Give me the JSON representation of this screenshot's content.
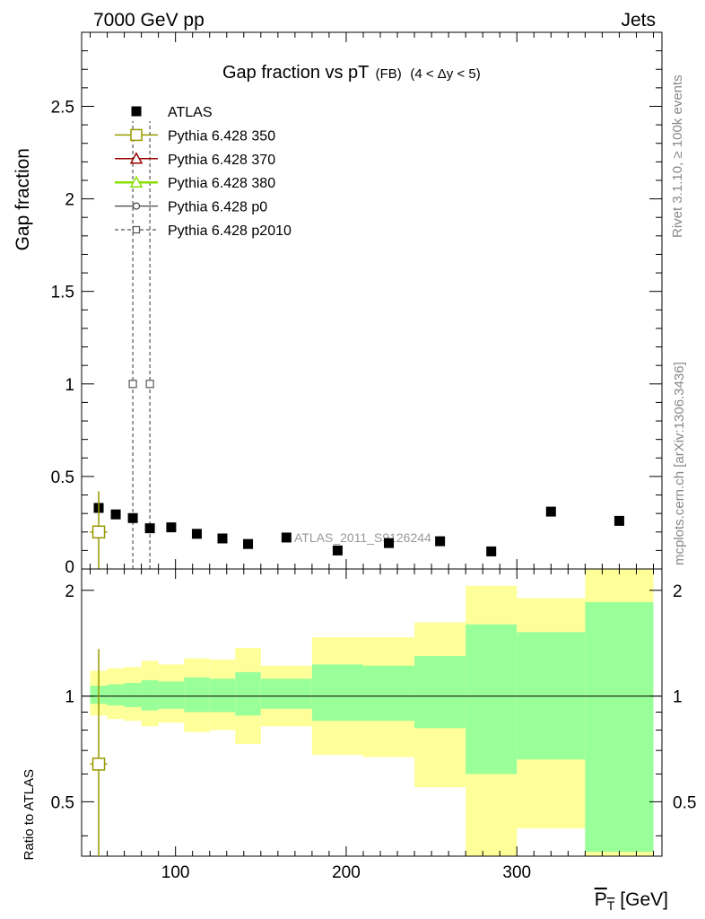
{
  "header": {
    "left": "7000 GeV pp",
    "right": "Jets"
  },
  "side_labels": {
    "upper": "Rivet 3.1.10, ≥ 100k events",
    "lower": "mcplots.cern.ch [arXiv:1306.3436]"
  },
  "watermark": "ATLAS_2011_S9126244",
  "colors": {
    "data": "#000000",
    "p350": "#999900",
    "p370": "#990000",
    "p380": "#88e000",
    "p0": "#444444",
    "p2010": "#555555",
    "band_outer": "#ffff99",
    "band_inner": "#99ff99"
  },
  "chart_data": [
    {
      "type": "scatter",
      "title_main": "Gap fraction vs pT",
      "title_sub1": "(FB)",
      "title_sub2": "(4 < Δy < 5)",
      "ylabel": "Gap fraction",
      "xlim": [
        45,
        385
      ],
      "ylim": [
        0,
        2.9
      ],
      "yticks": [
        0.5,
        1,
        1.5,
        2,
        2.5
      ],
      "ytick_labels": [
        "0.5",
        "1",
        "1.5",
        "2",
        "2.5"
      ],
      "ytick_zero_label": "0",
      "legend_position": "top-left",
      "legend": [
        "ATLAS",
        "Pythia 6.428 350",
        "Pythia 6.428 370",
        "Pythia 6.428 380",
        "Pythia 6.428 p0",
        "Pythia 6.428 p2010"
      ],
      "series": [
        {
          "name": "ATLAS",
          "x": [
            55,
            65,
            75,
            85,
            97.5,
            112.5,
            127.5,
            142.5,
            165,
            195,
            225,
            255,
            285,
            320,
            360
          ],
          "y": [
            0.33,
            0.295,
            0.275,
            0.22,
            0.225,
            0.19,
            0.165,
            0.135,
            0.17,
            0.1,
            0.14,
            0.15,
            0.095,
            0.31,
            0.26
          ]
        },
        {
          "name": "Pythia 6.428 350",
          "x": [
            55
          ],
          "y": [
            0.2
          ],
          "yerr_low": [
            0.2
          ],
          "yerr_high": [
            0.22
          ],
          "xerr": [
            5
          ]
        },
        {
          "name": "Pythia 6.428 p2010",
          "x": [
            75,
            85
          ],
          "y": [
            1,
            1
          ],
          "yerr_low": [
            1,
            1
          ],
          "yerr_high": [
            1.42,
            1.42
          ]
        }
      ]
    },
    {
      "type": "area",
      "ylabel": "Ratio to ATLAS",
      "xlabel_main": "P",
      "xlabel_sub": "T",
      "xlabel_unit": "[GeV]",
      "xlim": [
        45,
        385
      ],
      "ylim": [
        0.35,
        2.3
      ],
      "xticks": [
        100,
        200,
        300
      ],
      "xtick_labels": [
        "100",
        "200",
        "300"
      ],
      "yticks": [
        0.5,
        1,
        2
      ],
      "ytick_labels": [
        "0.5",
        "1",
        "2"
      ],
      "reference_line": 1,
      "bins": [
        {
          "lo": 50,
          "hi": 60,
          "outer": [
            0.88,
            1.18
          ],
          "inner": [
            0.95,
            1.07
          ]
        },
        {
          "lo": 60,
          "hi": 70,
          "outer": [
            0.86,
            1.2
          ],
          "inner": [
            0.94,
            1.08
          ]
        },
        {
          "lo": 70,
          "hi": 80,
          "outer": [
            0.85,
            1.21
          ],
          "inner": [
            0.93,
            1.09
          ]
        },
        {
          "lo": 80,
          "hi": 90,
          "outer": [
            0.82,
            1.26
          ],
          "inner": [
            0.91,
            1.11
          ]
        },
        {
          "lo": 90,
          "hi": 105,
          "outer": [
            0.84,
            1.23
          ],
          "inner": [
            0.92,
            1.1
          ]
        },
        {
          "lo": 105,
          "hi": 120,
          "outer": [
            0.79,
            1.28
          ],
          "inner": [
            0.9,
            1.13
          ]
        },
        {
          "lo": 120,
          "hi": 135,
          "outer": [
            0.8,
            1.27
          ],
          "inner": [
            0.9,
            1.12
          ]
        },
        {
          "lo": 135,
          "hi": 150,
          "outer": [
            0.73,
            1.37
          ],
          "inner": [
            0.88,
            1.17
          ]
        },
        {
          "lo": 150,
          "hi": 180,
          "outer": [
            0.82,
            1.22
          ],
          "inner": [
            0.92,
            1.12
          ]
        },
        {
          "lo": 180,
          "hi": 210,
          "outer": [
            0.68,
            1.47
          ],
          "inner": [
            0.85,
            1.23
          ]
        },
        {
          "lo": 210,
          "hi": 240,
          "outer": [
            0.67,
            1.47
          ],
          "inner": [
            0.85,
            1.22
          ]
        },
        {
          "lo": 240,
          "hi": 270,
          "outer": [
            0.55,
            1.62
          ],
          "inner": [
            0.81,
            1.3
          ]
        },
        {
          "lo": 270,
          "hi": 300,
          "outer": [
            0.33,
            2.06
          ],
          "inner": [
            0.6,
            1.6
          ]
        },
        {
          "lo": 300,
          "hi": 340,
          "outer": [
            0.42,
            1.9
          ],
          "inner": [
            0.66,
            1.52
          ]
        },
        {
          "lo": 340,
          "hi": 380,
          "outer": [
            0.33,
            2.4
          ],
          "inner": [
            0.36,
            1.85
          ]
        }
      ],
      "series": [
        {
          "name": "Pythia 6.428 350",
          "x": [
            55
          ],
          "y": [
            0.64
          ],
          "yerr_low": [
            0.3
          ],
          "yerr_high": [
            0.72
          ],
          "xerr": [
            5
          ]
        }
      ]
    }
  ]
}
